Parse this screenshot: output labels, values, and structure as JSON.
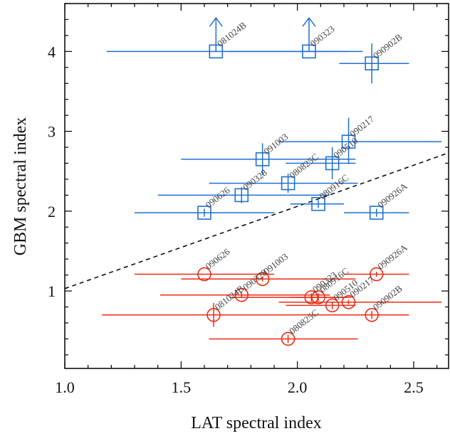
{
  "chart_data": {
    "type": "scatter",
    "xlabel": "LAT spectral index",
    "ylabel": "GBM spectral index",
    "xlim": [
      1.0,
      2.65
    ],
    "ylim": [
      0.03,
      4.6
    ],
    "xticks": [
      "1.0",
      "1.5",
      "2.0",
      "2.5"
    ],
    "yticks": [
      "1",
      "2",
      "3",
      "4"
    ],
    "colors": {
      "blue": "#1f6fd1",
      "red": "#ee2a14",
      "axis": "#000000"
    },
    "reference_line": {
      "x": [
        1.0,
        2.65
      ],
      "y": [
        1.03,
        2.73
      ],
      "style": "dashed"
    },
    "series": [
      {
        "marker": "square",
        "color": "#1f6fd1",
        "points": [
          {
            "label": "081024B",
            "x": 1.65,
            "y": 4.0,
            "xerr": [
              0.47,
              0.63
            ],
            "yerr": [
              0.0,
              0.0
            ],
            "lower_limit_arrow": true
          },
          {
            "label": "090323",
            "x": 2.05,
            "y": 4.0,
            "xerr": [
              0.35,
              0.17
            ],
            "yerr": [
              0.0,
              0.0
            ],
            "lower_limit_arrow": true
          },
          {
            "label": "090902B",
            "x": 2.32,
            "y": 3.85,
            "xerr": [
              0.14,
              0.16
            ],
            "yerr": [
              0.25,
              0.25
            ]
          },
          {
            "label": "090217",
            "x": 2.22,
            "y": 2.87,
            "xerr": [
              0.3,
              0.4
            ],
            "yerr": [
              0.28,
              0.3
            ]
          },
          {
            "label": "091003",
            "x": 1.85,
            "y": 2.65,
            "xerr": [
              0.35,
              0.4
            ],
            "yerr": [
              0.2,
              0.2
            ]
          },
          {
            "label": "090510",
            "x": 2.15,
            "y": 2.6,
            "xerr": [
              0.2,
              0.1
            ],
            "yerr": [
              0.2,
              0.2
            ]
          },
          {
            "label": "080825C",
            "x": 1.96,
            "y": 2.35,
            "xerr": [
              0.34,
              0.3
            ],
            "yerr": [
              0.12,
              0.12
            ]
          },
          {
            "label": "090328",
            "x": 1.76,
            "y": 2.2,
            "xerr": [
              0.36,
              0.38
            ],
            "yerr": [
              0.1,
              0.1
            ]
          },
          {
            "label": "090626",
            "x": 1.6,
            "y": 1.98,
            "xerr": [
              0.3,
              0.3
            ],
            "yerr": [
              0.05,
              0.05
            ]
          },
          {
            "label": "080916C",
            "x": 2.09,
            "y": 2.09,
            "xerr": [
              0.12,
              0.11
            ],
            "yerr": [
              0.05,
              0.05
            ]
          },
          {
            "label": "090926A",
            "x": 2.34,
            "y": 1.98,
            "xerr": [
              0.14,
              0.14
            ],
            "yerr": [
              0.05,
              0.05
            ]
          }
        ]
      },
      {
        "marker": "circle",
        "color": "#ee2a14",
        "points": [
          {
            "label": "090626",
            "x": 1.6,
            "y": 1.21,
            "xerr": [
              0.3,
              0.3
            ],
            "yerr": [
              0.0,
              0.0
            ]
          },
          {
            "label": "091003",
            "x": 1.85,
            "y": 1.15,
            "xerr": [
              0.35,
              0.4
            ],
            "yerr": [
              0.03,
              0.03
            ]
          },
          {
            "label": "090328",
            "x": 1.76,
            "y": 0.95,
            "xerr": [
              0.35,
              0.38
            ],
            "yerr": [
              0.04,
              0.04
            ]
          },
          {
            "label": "081024B",
            "x": 1.64,
            "y": 0.7,
            "xerr": [
              0.48,
              0.64
            ],
            "yerr": [
              0.15,
              0.15
            ]
          },
          {
            "label": "080825C",
            "x": 1.96,
            "y": 0.4,
            "xerr": [
              0.34,
              0.3
            ],
            "yerr": [
              0.05,
              0.05
            ]
          },
          {
            "label": "090323",
            "x": 2.06,
            "y": 0.92,
            "xerr": [
              0.35,
              0.17
            ],
            "yerr": [
              0.05,
              0.05
            ]
          },
          {
            "label": "080916C",
            "x": 2.09,
            "y": 0.92,
            "xerr": [
              0.12,
              0.11
            ],
            "yerr": [
              0.05,
              0.05
            ]
          },
          {
            "label": "090510",
            "x": 2.15,
            "y": 0.82,
            "xerr": [
              0.2,
              0.1
            ],
            "yerr": [
              0.05,
              0.05
            ]
          },
          {
            "label": "090217",
            "x": 2.22,
            "y": 0.86,
            "xerr": [
              0.3,
              0.4
            ],
            "yerr": [
              0.03,
              0.03
            ]
          },
          {
            "label": "090902B",
            "x": 2.32,
            "y": 0.7,
            "xerr": [
              0.14,
              0.16
            ],
            "yerr": [
              0.05,
              0.05
            ]
          },
          {
            "label": "090926A",
            "x": 2.34,
            "y": 1.21,
            "xerr": [
              0.14,
              0.14
            ],
            "yerr": [
              0.03,
              0.03
            ]
          }
        ]
      }
    ]
  }
}
